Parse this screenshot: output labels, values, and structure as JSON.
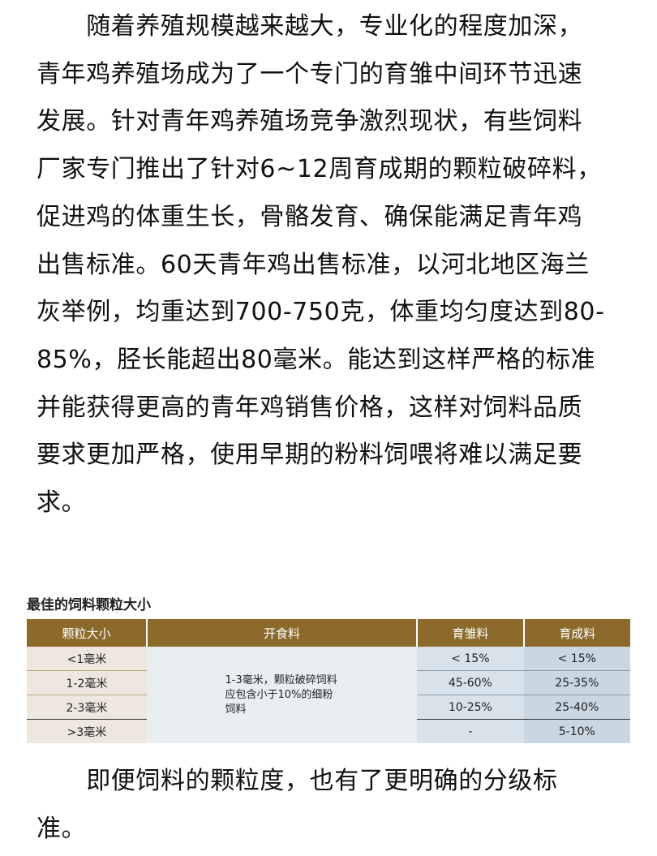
{
  "paragraph1": [
    "　　随着养殖规模越来越大，专业化的程度加深，",
    "青年鸡养殖场成为了一个专门的育雏中间环节迅速",
    "发展。针对青年鸡养殖场竞争激烈现状，有些饲料",
    "厂家专门推出了针对6~12周育成期的颗粒破碎料，",
    "促进鸡的体重生长，骨骼发育、确保能满足青年鸡",
    "出售标准。60天青年鸡出售标准，以河北地区海兰",
    "灰举例，均重达到700-750克，体重均匀度达到80-",
    "85%，胫长能超出80毫米。能达到这样严格的标准",
    "并能获得更高的青年鸡销售价格，这样对饲料品质",
    "要求更加严格，使用早期的粉料饲喂将难以满足要",
    "求。"
  ],
  "table": {
    "title": "最佳的饲料颗粒大小",
    "headers": [
      "颗粒大小",
      "开食料",
      "育雏料",
      "育成料"
    ],
    "rows": [
      [
        "<1毫米",
        "< 15%",
        "< 15%"
      ],
      [
        "1-2毫米",
        "45-60%",
        "25-35%"
      ],
      [
        "2-3毫米",
        "10-25%",
        "25-40%"
      ],
      [
        ">3毫米",
        "-",
        "5-10%"
      ]
    ],
    "starter_note": "1-3毫米，颗粒破碎饲料应包含小于10%的细粉饲料"
  },
  "paragraph2": [
    "　　即便饲料的颗粒度，也有了更明确的分级标",
    "准。"
  ]
}
